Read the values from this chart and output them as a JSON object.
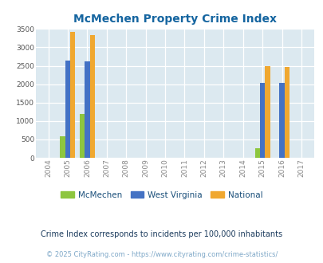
{
  "title": "McMechen Property Crime Index",
  "years": [
    "2004",
    "2005",
    "2006",
    "2007",
    "2008",
    "2009",
    "2010",
    "2011",
    "2012",
    "2013",
    "2014",
    "2015",
    "2016",
    "2017"
  ],
  "mcmechen": [
    0,
    580,
    1190,
    0,
    0,
    0,
    0,
    0,
    0,
    0,
    0,
    250,
    0,
    0
  ],
  "west_virginia": [
    0,
    2630,
    2610,
    0,
    0,
    0,
    0,
    0,
    0,
    0,
    0,
    2030,
    2040,
    0
  ],
  "national": [
    0,
    3420,
    3330,
    0,
    0,
    0,
    0,
    0,
    0,
    0,
    0,
    2480,
    2460,
    0
  ],
  "color_mcmechen": "#8dc63f",
  "color_wv": "#4472c4",
  "color_national": "#f0a830",
  "plot_bg": "#dce9f0",
  "ylim": [
    0,
    3500
  ],
  "yticks": [
    0,
    500,
    1000,
    1500,
    2000,
    2500,
    3000,
    3500
  ],
  "xtick_color": "#888888",
  "ytick_color": "#555555",
  "title_color": "#1565a0",
  "legend_color": "#1a4f7a",
  "legend_label_mcmechen": "McMechen",
  "legend_label_wv": "West Virginia",
  "legend_label_national": "National",
  "subtitle": "Crime Index corresponds to incidents per 100,000 inhabitants",
  "footer": "© 2025 CityRating.com - https://www.cityrating.com/crime-statistics/",
  "bar_width": 0.26
}
